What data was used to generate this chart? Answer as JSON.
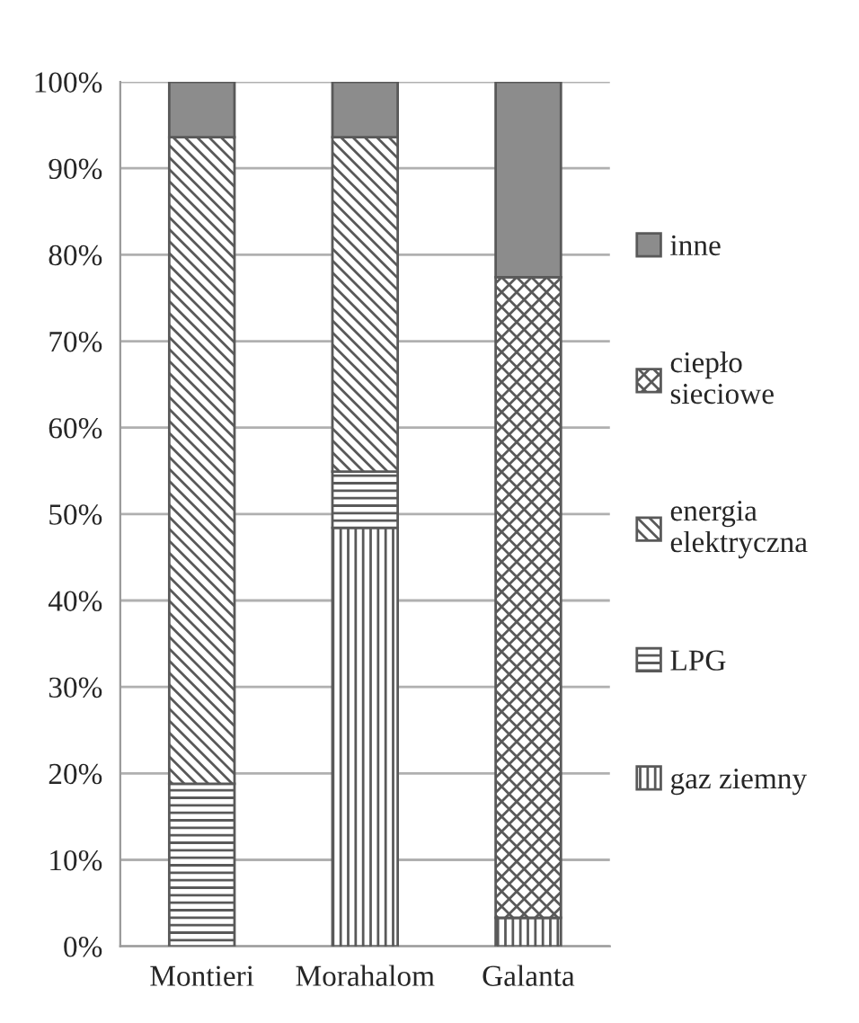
{
  "chart_data": {
    "type": "bar",
    "stacked": true,
    "categories": [
      "Montieri",
      "Morahalom",
      "Galanta"
    ],
    "series": [
      {
        "name": "gaz ziemny",
        "color": "#595959",
        "values": [
          0,
          48.4,
          3.3
        ]
      },
      {
        "name": "LPG",
        "color": "#595959",
        "values": [
          18.8,
          6.5,
          0
        ]
      },
      {
        "name": "energia elektryczna",
        "color": "#595959",
        "values": [
          74.8,
          38.7,
          0
        ]
      },
      {
        "name": "ciepło sieciowe",
        "color": "#595959",
        "values": [
          0,
          0,
          74.1
        ]
      },
      {
        "name": "inne",
        "color": "#8c8c8c",
        "values": [
          6.4,
          6.4,
          22.6
        ]
      }
    ],
    "ylim": [
      0,
      100
    ],
    "yticks": [
      {
        "value": 0,
        "label": "0%"
      },
      {
        "value": 10,
        "label": "10%"
      },
      {
        "value": 20,
        "label": "20%"
      },
      {
        "value": 30,
        "label": "30%"
      },
      {
        "value": 40,
        "label": "40%"
      },
      {
        "value": 50,
        "label": "50%"
      },
      {
        "value": 60,
        "label": "60%"
      },
      {
        "value": 70,
        "label": "70%"
      },
      {
        "value": 80,
        "label": "80%"
      },
      {
        "value": 90,
        "label": "90%"
      },
      {
        "value": 100,
        "label": "100%"
      }
    ],
    "grid": "y",
    "legend": "right"
  }
}
